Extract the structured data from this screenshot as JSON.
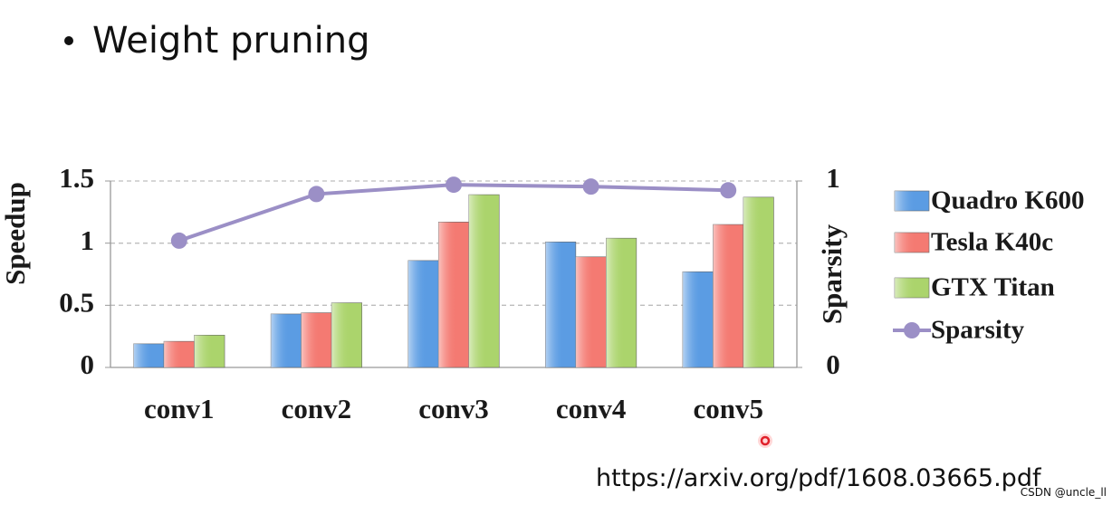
{
  "heading": "Weight pruning",
  "source": "https://arxiv.org/pdf/1608.03665.pdf",
  "watermark": "CSDN @uncle_ll",
  "chart_data": {
    "type": "bar",
    "categories": [
      "conv1",
      "conv2",
      "conv3",
      "conv4",
      "conv5"
    ],
    "ylabel": "Speedup",
    "y2label": "Sparsity",
    "ylim": [
      0,
      1.5
    ],
    "yticks": [
      0,
      0.5,
      1,
      1.5
    ],
    "y2lim": [
      0,
      1
    ],
    "y2ticks": [
      0,
      1
    ],
    "grid": true,
    "legend": "right",
    "series": [
      {
        "name": "Quadro K600",
        "color": "#5b9ce3",
        "values": [
          0.19,
          0.43,
          0.86,
          1.01,
          0.77
        ]
      },
      {
        "name": "Tesla K40c",
        "color": "#f47a72",
        "values": [
          0.21,
          0.44,
          1.17,
          0.89,
          1.15
        ]
      },
      {
        "name": "GTX Titan",
        "color": "#abd46c",
        "values": [
          0.26,
          0.52,
          1.39,
          1.04,
          1.37
        ]
      },
      {
        "name": "Sparsity",
        "color": "#9b8fc6",
        "type": "line",
        "axis": "y2",
        "values": [
          0.68,
          0.93,
          0.98,
          0.97,
          0.95
        ]
      }
    ]
  }
}
